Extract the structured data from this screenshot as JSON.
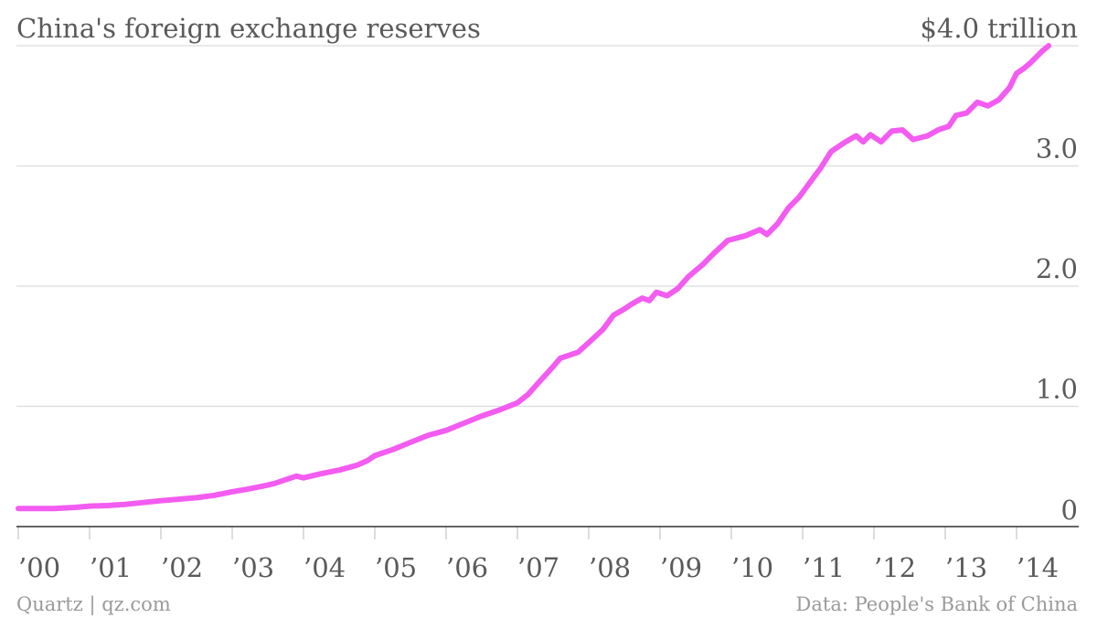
{
  "chart_data": {
    "type": "line",
    "title": "China's foreign exchange reserves",
    "ylim": [
      0,
      4.0
    ],
    "yticks": [
      {
        "value": 0,
        "label": "0"
      },
      {
        "value": 1.0,
        "label": "1.0"
      },
      {
        "value": 2.0,
        "label": "2.0"
      },
      {
        "value": 3.0,
        "label": "3.0"
      },
      {
        "value": 4.0,
        "label": "$4.0 trillion"
      }
    ],
    "xlim": [
      2000.0,
      2014.5
    ],
    "xticks": [
      {
        "value": 2000,
        "label": "’00"
      },
      {
        "value": 2001,
        "label": "’01"
      },
      {
        "value": 2002,
        "label": "’02"
      },
      {
        "value": 2003,
        "label": "’03"
      },
      {
        "value": 2004,
        "label": "’04"
      },
      {
        "value": 2005,
        "label": "’05"
      },
      {
        "value": 2006,
        "label": "’06"
      },
      {
        "value": 2007,
        "label": "’07"
      },
      {
        "value": 2008,
        "label": "’08"
      },
      {
        "value": 2009,
        "label": "’09"
      },
      {
        "value": 2010,
        "label": "’10"
      },
      {
        "value": 2011,
        "label": "’11"
      },
      {
        "value": 2012,
        "label": "’12"
      },
      {
        "value": 2013,
        "label": "’13"
      },
      {
        "value": 2014,
        "label": "’14"
      }
    ],
    "grid": true,
    "series": [
      {
        "color": "#f25cf0",
        "points": [
          [
            2000.0,
            0.15
          ],
          [
            2000.5,
            0.15
          ],
          [
            2000.8,
            0.16
          ],
          [
            2001.0,
            0.17
          ],
          [
            2001.25,
            0.175
          ],
          [
            2001.5,
            0.185
          ],
          [
            2001.75,
            0.2
          ],
          [
            2002.0,
            0.215
          ],
          [
            2002.5,
            0.24
          ],
          [
            2002.75,
            0.26
          ],
          [
            2003.0,
            0.29
          ],
          [
            2003.25,
            0.315
          ],
          [
            2003.5,
            0.345
          ],
          [
            2003.6,
            0.36
          ],
          [
            2003.75,
            0.39
          ],
          [
            2003.9,
            0.42
          ],
          [
            2004.0,
            0.405
          ],
          [
            2004.25,
            0.44
          ],
          [
            2004.5,
            0.47
          ],
          [
            2004.75,
            0.51
          ],
          [
            2004.9,
            0.55
          ],
          [
            2005.0,
            0.59
          ],
          [
            2005.25,
            0.64
          ],
          [
            2005.5,
            0.7
          ],
          [
            2005.75,
            0.76
          ],
          [
            2006.0,
            0.8
          ],
          [
            2006.25,
            0.86
          ],
          [
            2006.5,
            0.92
          ],
          [
            2006.75,
            0.97
          ],
          [
            2007.0,
            1.03
          ],
          [
            2007.15,
            1.1
          ],
          [
            2007.3,
            1.2
          ],
          [
            2007.5,
            1.33
          ],
          [
            2007.6,
            1.4
          ],
          [
            2007.85,
            1.45
          ],
          [
            2008.0,
            1.53
          ],
          [
            2008.2,
            1.64
          ],
          [
            2008.35,
            1.76
          ],
          [
            2008.5,
            1.81
          ],
          [
            2008.6,
            1.85
          ],
          [
            2008.75,
            1.9
          ],
          [
            2008.85,
            1.88
          ],
          [
            2008.95,
            1.95
          ],
          [
            2009.1,
            1.92
          ],
          [
            2009.25,
            1.98
          ],
          [
            2009.4,
            2.08
          ],
          [
            2009.6,
            2.18
          ],
          [
            2009.75,
            2.27
          ],
          [
            2009.95,
            2.38
          ],
          [
            2010.2,
            2.42
          ],
          [
            2010.4,
            2.47
          ],
          [
            2010.5,
            2.43
          ],
          [
            2010.65,
            2.52
          ],
          [
            2010.8,
            2.65
          ],
          [
            2010.95,
            2.74
          ],
          [
            2011.1,
            2.86
          ],
          [
            2011.25,
            2.98
          ],
          [
            2011.4,
            3.12
          ],
          [
            2011.6,
            3.2
          ],
          [
            2011.75,
            3.25
          ],
          [
            2011.85,
            3.2
          ],
          [
            2011.95,
            3.26
          ],
          [
            2012.1,
            3.2
          ],
          [
            2012.25,
            3.29
          ],
          [
            2012.4,
            3.3
          ],
          [
            2012.55,
            3.22
          ],
          [
            2012.75,
            3.25
          ],
          [
            2012.9,
            3.3
          ],
          [
            2013.05,
            3.33
          ],
          [
            2013.15,
            3.42
          ],
          [
            2013.3,
            3.44
          ],
          [
            2013.45,
            3.53
          ],
          [
            2013.6,
            3.5
          ],
          [
            2013.75,
            3.55
          ],
          [
            2013.9,
            3.65
          ],
          [
            2014.0,
            3.77
          ],
          [
            2014.1,
            3.81
          ],
          [
            2014.2,
            3.86
          ],
          [
            2014.35,
            3.95
          ],
          [
            2014.45,
            4.0
          ]
        ]
      }
    ],
    "source_left": "Quartz | qz.com",
    "source_right": "Data: People's Bank of China"
  }
}
